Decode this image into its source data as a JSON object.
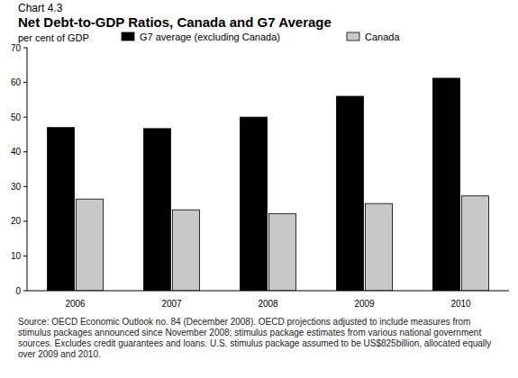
{
  "chart_data": {
    "type": "bar",
    "chart_label": "Chart 4.3",
    "title": "Net Debt-to-GDP Ratios, Canada and G7 Average",
    "y_label": "per cent of GDP",
    "categories": [
      "2006",
      "2007",
      "2008",
      "2009",
      "2010"
    ],
    "series": [
      {
        "name": "G7 average (excluding Canada)",
        "color": "#000000",
        "values": [
          47,
          46.7,
          50,
          56,
          61.2
        ]
      },
      {
        "name": "Canada",
        "color": "#c8c8c8",
        "values": [
          26.4,
          23.3,
          22.2,
          25.1,
          27.3
        ]
      }
    ],
    "ylim": [
      0,
      70
    ],
    "yticks": [
      0,
      10,
      20,
      30,
      40,
      50,
      60,
      70
    ],
    "grid": false,
    "legend": "top",
    "source_note": "Source: OECD Economic Outlook no. 84 (December 2008). OECD projections adjusted to include measures from stimulus packages announced since November 2008; stimulus package estimates from various national government sources. Excludes credit guarantees and loans. U.S. stimulus package assumed to be US$825billion, allocated equally over 2009 and 2010."
  }
}
